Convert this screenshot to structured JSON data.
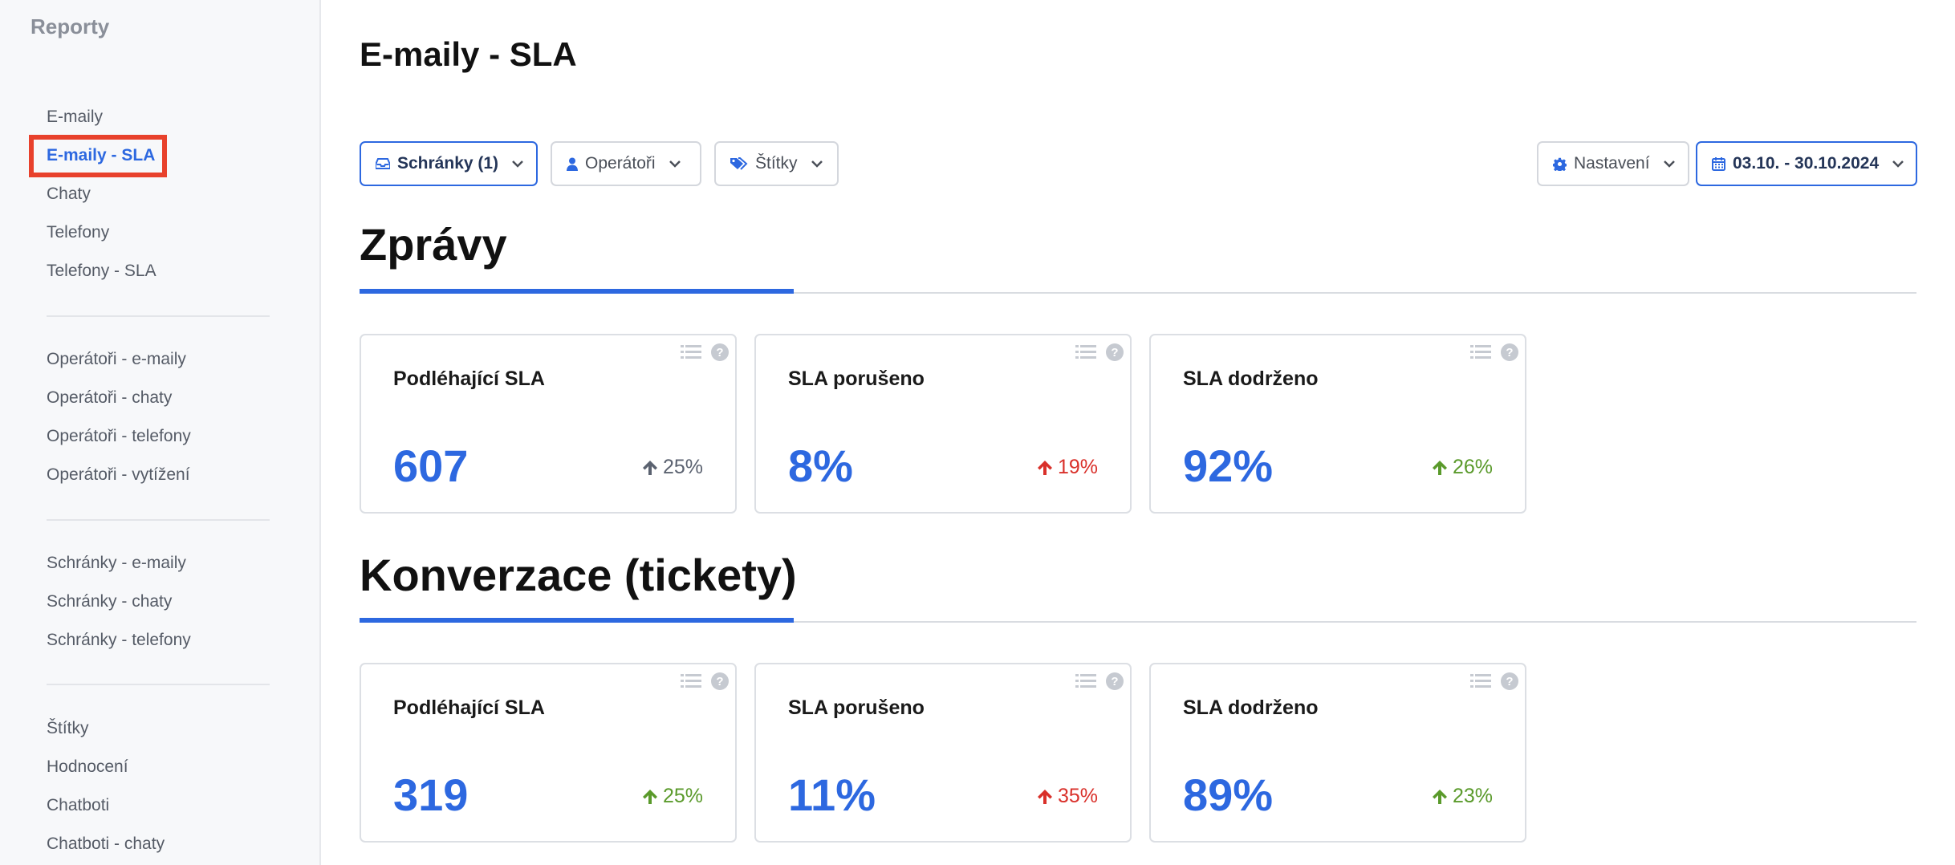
{
  "sidebar": {
    "title": "Reporty",
    "groups": [
      {
        "items": [
          {
            "label": "E-maily"
          },
          {
            "label": "E-maily - SLA"
          },
          {
            "label": "Chaty"
          },
          {
            "label": "Telefony"
          },
          {
            "label": "Telefony - SLA"
          }
        ]
      },
      {
        "items": [
          {
            "label": "Operátoři - e-maily"
          },
          {
            "label": "Operátoři - chaty"
          },
          {
            "label": "Operátoři - telefony"
          },
          {
            "label": "Operátoři - vytížení"
          }
        ]
      },
      {
        "items": [
          {
            "label": "Schránky - e-maily"
          },
          {
            "label": "Schránky - chaty"
          },
          {
            "label": "Schránky - telefony"
          }
        ]
      },
      {
        "items": [
          {
            "label": "Štítky"
          },
          {
            "label": "Hodnocení"
          },
          {
            "label": "Chatboti"
          },
          {
            "label": "Chatboti - chaty"
          }
        ]
      }
    ]
  },
  "page": {
    "title": "E-maily - SLA"
  },
  "filters": {
    "mailboxes": {
      "label": "Schránky (1)",
      "icon": "inbox-icon"
    },
    "operators": {
      "label": "Operátoři",
      "icon": "user-icon"
    },
    "tags": {
      "label": "Štítky",
      "icon": "tags-icon"
    },
    "settings": {
      "label": "Nastavení",
      "icon": "gear-icon"
    },
    "date_range": {
      "label": "03.10. - 30.10.2024",
      "icon": "calendar-icon"
    }
  },
  "sections": [
    {
      "title": "Zprávy",
      "cards": [
        {
          "label": "Podléhající SLA",
          "value": "607",
          "trend": "25%",
          "trend_direction": "up",
          "trend_color": "#5b6270"
        },
        {
          "label": "SLA porušeno",
          "value": "8%",
          "trend": "19%",
          "trend_direction": "up",
          "trend_color": "#d9302a"
        },
        {
          "label": "SLA dodrženo",
          "value": "92%",
          "trend": "26%",
          "trend_direction": "up",
          "trend_color": "#5a9a2b"
        }
      ]
    },
    {
      "title": "Konverzace (tickety)",
      "cards": [
        {
          "label": "Podléhající SLA",
          "value": "319",
          "trend": "25%",
          "trend_direction": "up",
          "trend_color": "#5a9a2b"
        },
        {
          "label": "SLA porušeno",
          "value": "11%",
          "trend": "35%",
          "trend_direction": "up",
          "trend_color": "#d9302a"
        },
        {
          "label": "SLA dodrženo",
          "value": "89%",
          "trend": "23%",
          "trend_direction": "up",
          "trend_color": "#5a9a2b"
        }
      ]
    }
  ],
  "colors": {
    "accent": "#2d68e0",
    "highlight_frame": "#e8412c"
  }
}
